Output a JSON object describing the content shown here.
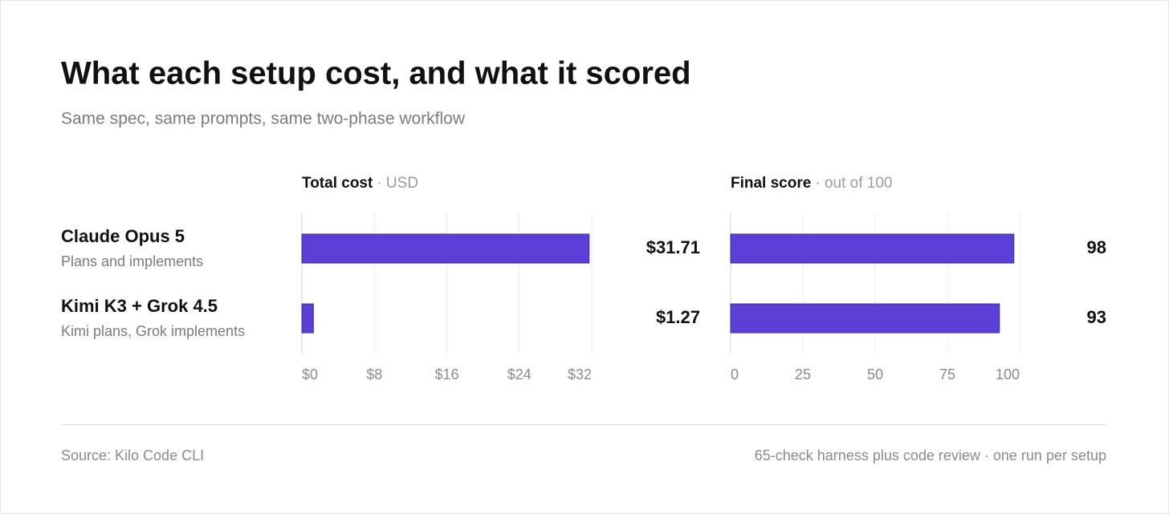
{
  "title": "What each setup cost, and what it scored",
  "subtitle": "Same spec, same prompts, same two-phase workflow",
  "row_notes": [
    "Plans and implements",
    "Kimi plans, Grok implements"
  ],
  "chart_data": [
    {
      "type": "bar",
      "orientation": "horizontal",
      "title": "Total cost",
      "unit": "· USD",
      "categories": [
        "Claude Opus 5",
        "Kimi K3 + Grok 4.5"
      ],
      "values": [
        31.71,
        1.27
      ],
      "value_labels": [
        "$31.71",
        "$1.27"
      ],
      "xlim": [
        0,
        32
      ],
      "xticks": [
        {
          "value": 0,
          "label": "$0"
        },
        {
          "value": 8,
          "label": "$8"
        },
        {
          "value": 16,
          "label": "$16"
        },
        {
          "value": 24,
          "label": "$24"
        },
        {
          "value": 32,
          "label": "$32"
        }
      ],
      "color": "#5b3fd6",
      "grid": true
    },
    {
      "type": "bar",
      "orientation": "horizontal",
      "title": "Final score",
      "unit": "· out of 100",
      "values": [
        98,
        93
      ],
      "xlim": [
        0,
        100
      ],
      "xticks": [
        0,
        25,
        50,
        75,
        100
      ],
      "color": "#5b3fd6",
      "grid": true
    }
  ],
  "footer": {
    "source": "Source: Kilo Code CLI",
    "note": "65-check harness plus code review · one run per setup"
  }
}
